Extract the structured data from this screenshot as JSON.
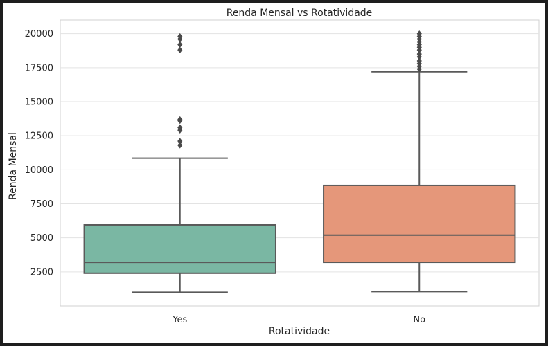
{
  "chart_data": {
    "type": "box",
    "title": "Renda Mensal vs Rotatividade",
    "xlabel": "Rotatividade",
    "ylabel": "Renda Mensal",
    "ylim": [
      0,
      21000
    ],
    "yticks": [
      2500,
      5000,
      7500,
      10000,
      12500,
      15000,
      17500,
      20000
    ],
    "grid": true,
    "categories": [
      "Yes",
      "No"
    ],
    "boxes": [
      {
        "category": "Yes",
        "color": "#7ab7a3",
        "whisker_low": 1000,
        "q1": 2400,
        "median": 3200,
        "q3": 5950,
        "whisker_high": 10850,
        "outliers": [
          11800,
          12100,
          12900,
          13100,
          13600,
          13700,
          18800,
          19200,
          19600,
          19800
        ]
      },
      {
        "category": "No",
        "color": "#e5977a",
        "whisker_low": 1050,
        "q1": 3200,
        "median": 5200,
        "q3": 8850,
        "whisker_high": 17200,
        "outliers": [
          17400,
          17600,
          17800,
          18000,
          18300,
          18500,
          18800,
          19000,
          19200,
          19400,
          19600,
          19800,
          20000
        ]
      }
    ]
  }
}
